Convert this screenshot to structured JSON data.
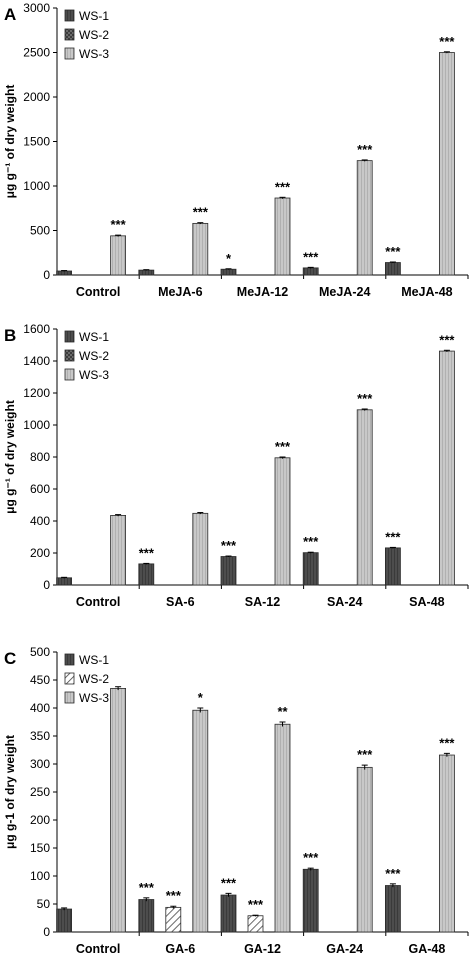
{
  "chart_data": [
    {
      "type": "bar",
      "panel_label": "A",
      "categories": [
        "Control",
        "MeJA-6",
        "MeJA-12",
        "MeJA-24",
        "MeJA-48"
      ],
      "ylabel": "μg g⁻¹ of dry weight",
      "ylim": [
        0,
        3000
      ],
      "yticks": [
        "0",
        "500",
        "1000",
        "1500",
        "2000",
        "2500",
        "3000"
      ],
      "legend_position": "top-left",
      "series": [
        {
          "name": "WS-1",
          "values": [
            45,
            55,
            65,
            80,
            140
          ],
          "errors": [
            5,
            5,
            5,
            6,
            6
          ],
          "sig": [
            "",
            "",
            "*",
            "***",
            "***"
          ],
          "color": "#4a4a4a"
        },
        {
          "name": "WS-2",
          "values": [
            0,
            0,
            0,
            0,
            0
          ],
          "errors": [
            0,
            0,
            0,
            0,
            0
          ],
          "sig": [
            "",
            "",
            "",
            "",
            ""
          ],
          "color": "#3a3a3a"
        },
        {
          "name": "WS-3",
          "values": [
            440,
            580,
            865,
            1285,
            2500
          ],
          "errors": [
            8,
            8,
            8,
            8,
            8
          ],
          "sig": [
            "***",
            "***",
            "***",
            "***",
            "***"
          ],
          "color": "#c4c4c4"
        }
      ]
    },
    {
      "type": "bar",
      "panel_label": "B",
      "categories": [
        "Control",
        "SA-6",
        "SA-12",
        "SA-24",
        "SA-48"
      ],
      "ylabel": "μg g⁻¹ of dry weight",
      "ylim": [
        0,
        1600
      ],
      "yticks": [
        "0",
        "200",
        "400",
        "600",
        "800",
        "1000",
        "1200",
        "1400",
        "1600"
      ],
      "legend_position": "top-left",
      "series": [
        {
          "name": "WS-1",
          "values": [
            45,
            132,
            178,
            202,
            232
          ],
          "errors": [
            3,
            3,
            3,
            3,
            3
          ],
          "sig": [
            "",
            "***",
            "***",
            "***",
            "***"
          ],
          "color": "#4a4a4a"
        },
        {
          "name": "WS-2",
          "values": [
            0,
            0,
            0,
            0,
            0
          ],
          "errors": [
            0,
            0,
            0,
            0,
            0
          ],
          "sig": [
            "",
            "",
            "",
            "",
            ""
          ],
          "color": "#3a3a3a"
        },
        {
          "name": "WS-3",
          "values": [
            435,
            448,
            795,
            1095,
            1462
          ],
          "errors": [
            5,
            5,
            5,
            5,
            5
          ],
          "sig": [
            "",
            "",
            "***",
            "***",
            "***"
          ],
          "color": "#c4c4c4"
        }
      ]
    },
    {
      "type": "bar",
      "panel_label": "C",
      "categories": [
        "Control",
        "GA-6",
        "GA-12",
        "GA-24",
        "GA-48"
      ],
      "ylabel": "μg g-1 of dry weight",
      "ylim": [
        0,
        500
      ],
      "yticks": [
        "0",
        "50",
        "100",
        "150",
        "200",
        "250",
        "300",
        "350",
        "400",
        "450",
        "500"
      ],
      "legend_position": "top-left",
      "series": [
        {
          "name": "WS-1",
          "values": [
            41,
            58,
            66,
            112,
            83
          ],
          "errors": [
            2,
            3,
            3,
            2,
            3
          ],
          "sig": [
            "",
            "***",
            "***",
            "***",
            "***"
          ],
          "color": "#4a4a4a"
        },
        {
          "name": "WS-2",
          "values": [
            0,
            44,
            29,
            0,
            0
          ],
          "errors": [
            0,
            2,
            1,
            0,
            0
          ],
          "sig": [
            "",
            "***",
            "***",
            "",
            ""
          ],
          "color": "#ffffff"
        },
        {
          "name": "WS-3",
          "values": [
            435,
            396,
            371,
            294,
            316
          ],
          "errors": [
            3,
            4,
            4,
            4,
            3
          ],
          "sig": [
            "",
            "*",
            "**",
            "***",
            "***"
          ],
          "color": "#c4c4c4"
        }
      ]
    }
  ]
}
